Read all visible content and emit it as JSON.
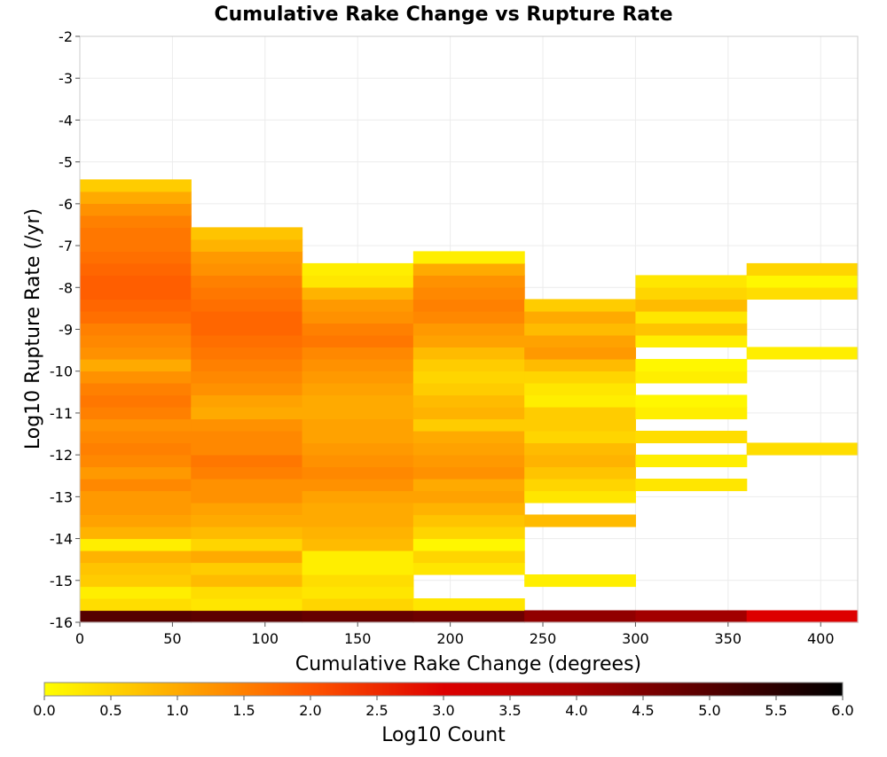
{
  "chart_data": {
    "type": "heatmap",
    "title": "Cumulative Rake Change vs Rupture Rate",
    "xlabel": "Cumulative Rake Change (degrees)",
    "ylabel": "Log10 Rupture Rate (/yr)",
    "xlim": [
      0,
      420
    ],
    "ylim": [
      -16,
      -2
    ],
    "x_ticks": [
      0,
      50,
      100,
      150,
      200,
      250,
      300,
      350,
      400
    ],
    "y_ticks": [
      -2,
      -3,
      -4,
      -5,
      -6,
      -7,
      -8,
      -9,
      -10,
      -11,
      -12,
      -13,
      -14,
      -15,
      -16
    ],
    "grid": true,
    "x_bin_width": 60,
    "y_bin_height": 0.286,
    "y_bin_lowest_center": -15.857,
    "colorbar": {
      "label": "Log10 Count",
      "range": [
        0,
        6
      ],
      "ticks": [
        "0.0",
        "0.5",
        "1.0",
        "1.5",
        "2.0",
        "2.5",
        "3.0",
        "3.5",
        "4.0",
        "4.5",
        "5.0",
        "5.5",
        "6.0"
      ],
      "colors": [
        "#ffff00",
        "#ffaa00",
        "#ff5500",
        "#dd0000",
        "#aa0000",
        "#550000",
        "#000000"
      ]
    },
    "columns": [
      {
        "x_range": [
          0,
          60
        ],
        "log10_count": [
          5.0,
          0.4,
          0.2,
          0.6,
          0.7,
          0.9,
          0.2,
          0.9,
          1.1,
          1.2,
          1.2,
          1.4,
          1.2,
          1.4,
          1.5,
          1.4,
          1.3,
          1.5,
          1.6,
          1.5,
          1.3,
          1.0,
          1.3,
          1.4,
          1.5,
          1.7,
          1.8,
          1.9,
          1.9,
          1.8,
          1.7,
          1.6,
          1.6,
          1.5,
          1.3,
          1.0,
          0.6
        ]
      },
      {
        "x_range": [
          60,
          120
        ],
        "log10_count": [
          4.9,
          0.3,
          0.4,
          0.8,
          0.6,
          1.0,
          0.5,
          0.8,
          1.0,
          1.1,
          1.3,
          1.3,
          1.5,
          1.6,
          1.4,
          1.4,
          1.3,
          1.0,
          1.1,
          1.3,
          1.4,
          1.5,
          1.6,
          1.7,
          1.8,
          1.8,
          1.7,
          1.6,
          1.5,
          1.3,
          1.2,
          0.9,
          0.7
        ]
      },
      {
        "x_range": [
          120,
          180
        ],
        "log10_count": [
          4.8,
          0.5,
          0.3,
          0.4,
          0.2,
          0.2,
          0.8,
          0.9,
          1.0,
          1.0,
          1.1,
          1.3,
          1.4,
          1.3,
          1.2,
          1.1,
          1.1,
          1.0,
          1.0,
          1.1,
          1.2,
          1.3,
          1.4,
          1.6,
          1.5,
          1.3,
          1.2,
          0.9,
          0.3,
          0.2
        ]
      },
      {
        "x_range": [
          180,
          240
        ],
        "log10_count": [
          4.7,
          0.3,
          0,
          0,
          0.3,
          0.5,
          0.1,
          0.5,
          0.7,
          0.9,
          1.1,
          1.0,
          1.3,
          1.2,
          1.1,
          1.0,
          0.6,
          0.9,
          0.8,
          0.6,
          0.5,
          0.6,
          0.8,
          1.1,
          1.2,
          1.4,
          1.5,
          1.4,
          1.3,
          1.0,
          0.2
        ]
      },
      {
        "x_range": [
          240,
          300
        ],
        "log10_count": [
          4.3,
          0,
          0,
          0.2,
          0,
          0,
          0,
          0,
          0.8,
          0,
          0.3,
          0.5,
          0.7,
          0.9,
          0.8,
          0.5,
          0.6,
          0.6,
          0.2,
          0.3,
          0.5,
          0.8,
          1.2,
          1.1,
          0.8,
          1.0,
          0.6
        ]
      },
      {
        "x_range": [
          300,
          360
        ],
        "log10_count": [
          4.1,
          0,
          0,
          0,
          0,
          0,
          0,
          0,
          0,
          0,
          0,
          0.3,
          0,
          0.2,
          0,
          0.4,
          0,
          0.2,
          0.1,
          0,
          0.2,
          0.1,
          0,
          0.2,
          0.7,
          0.3,
          0.8,
          0.5,
          0.3
        ]
      },
      {
        "x_range": [
          360,
          420
        ],
        "log10_count": [
          3.0,
          0,
          0,
          0,
          0,
          0,
          0,
          0,
          0,
          0,
          0,
          0,
          0,
          0,
          0.4,
          0,
          0,
          0,
          0,
          0,
          0,
          0,
          0.2,
          0,
          0,
          0,
          0,
          0.4,
          0.1,
          0.5
        ]
      }
    ]
  }
}
